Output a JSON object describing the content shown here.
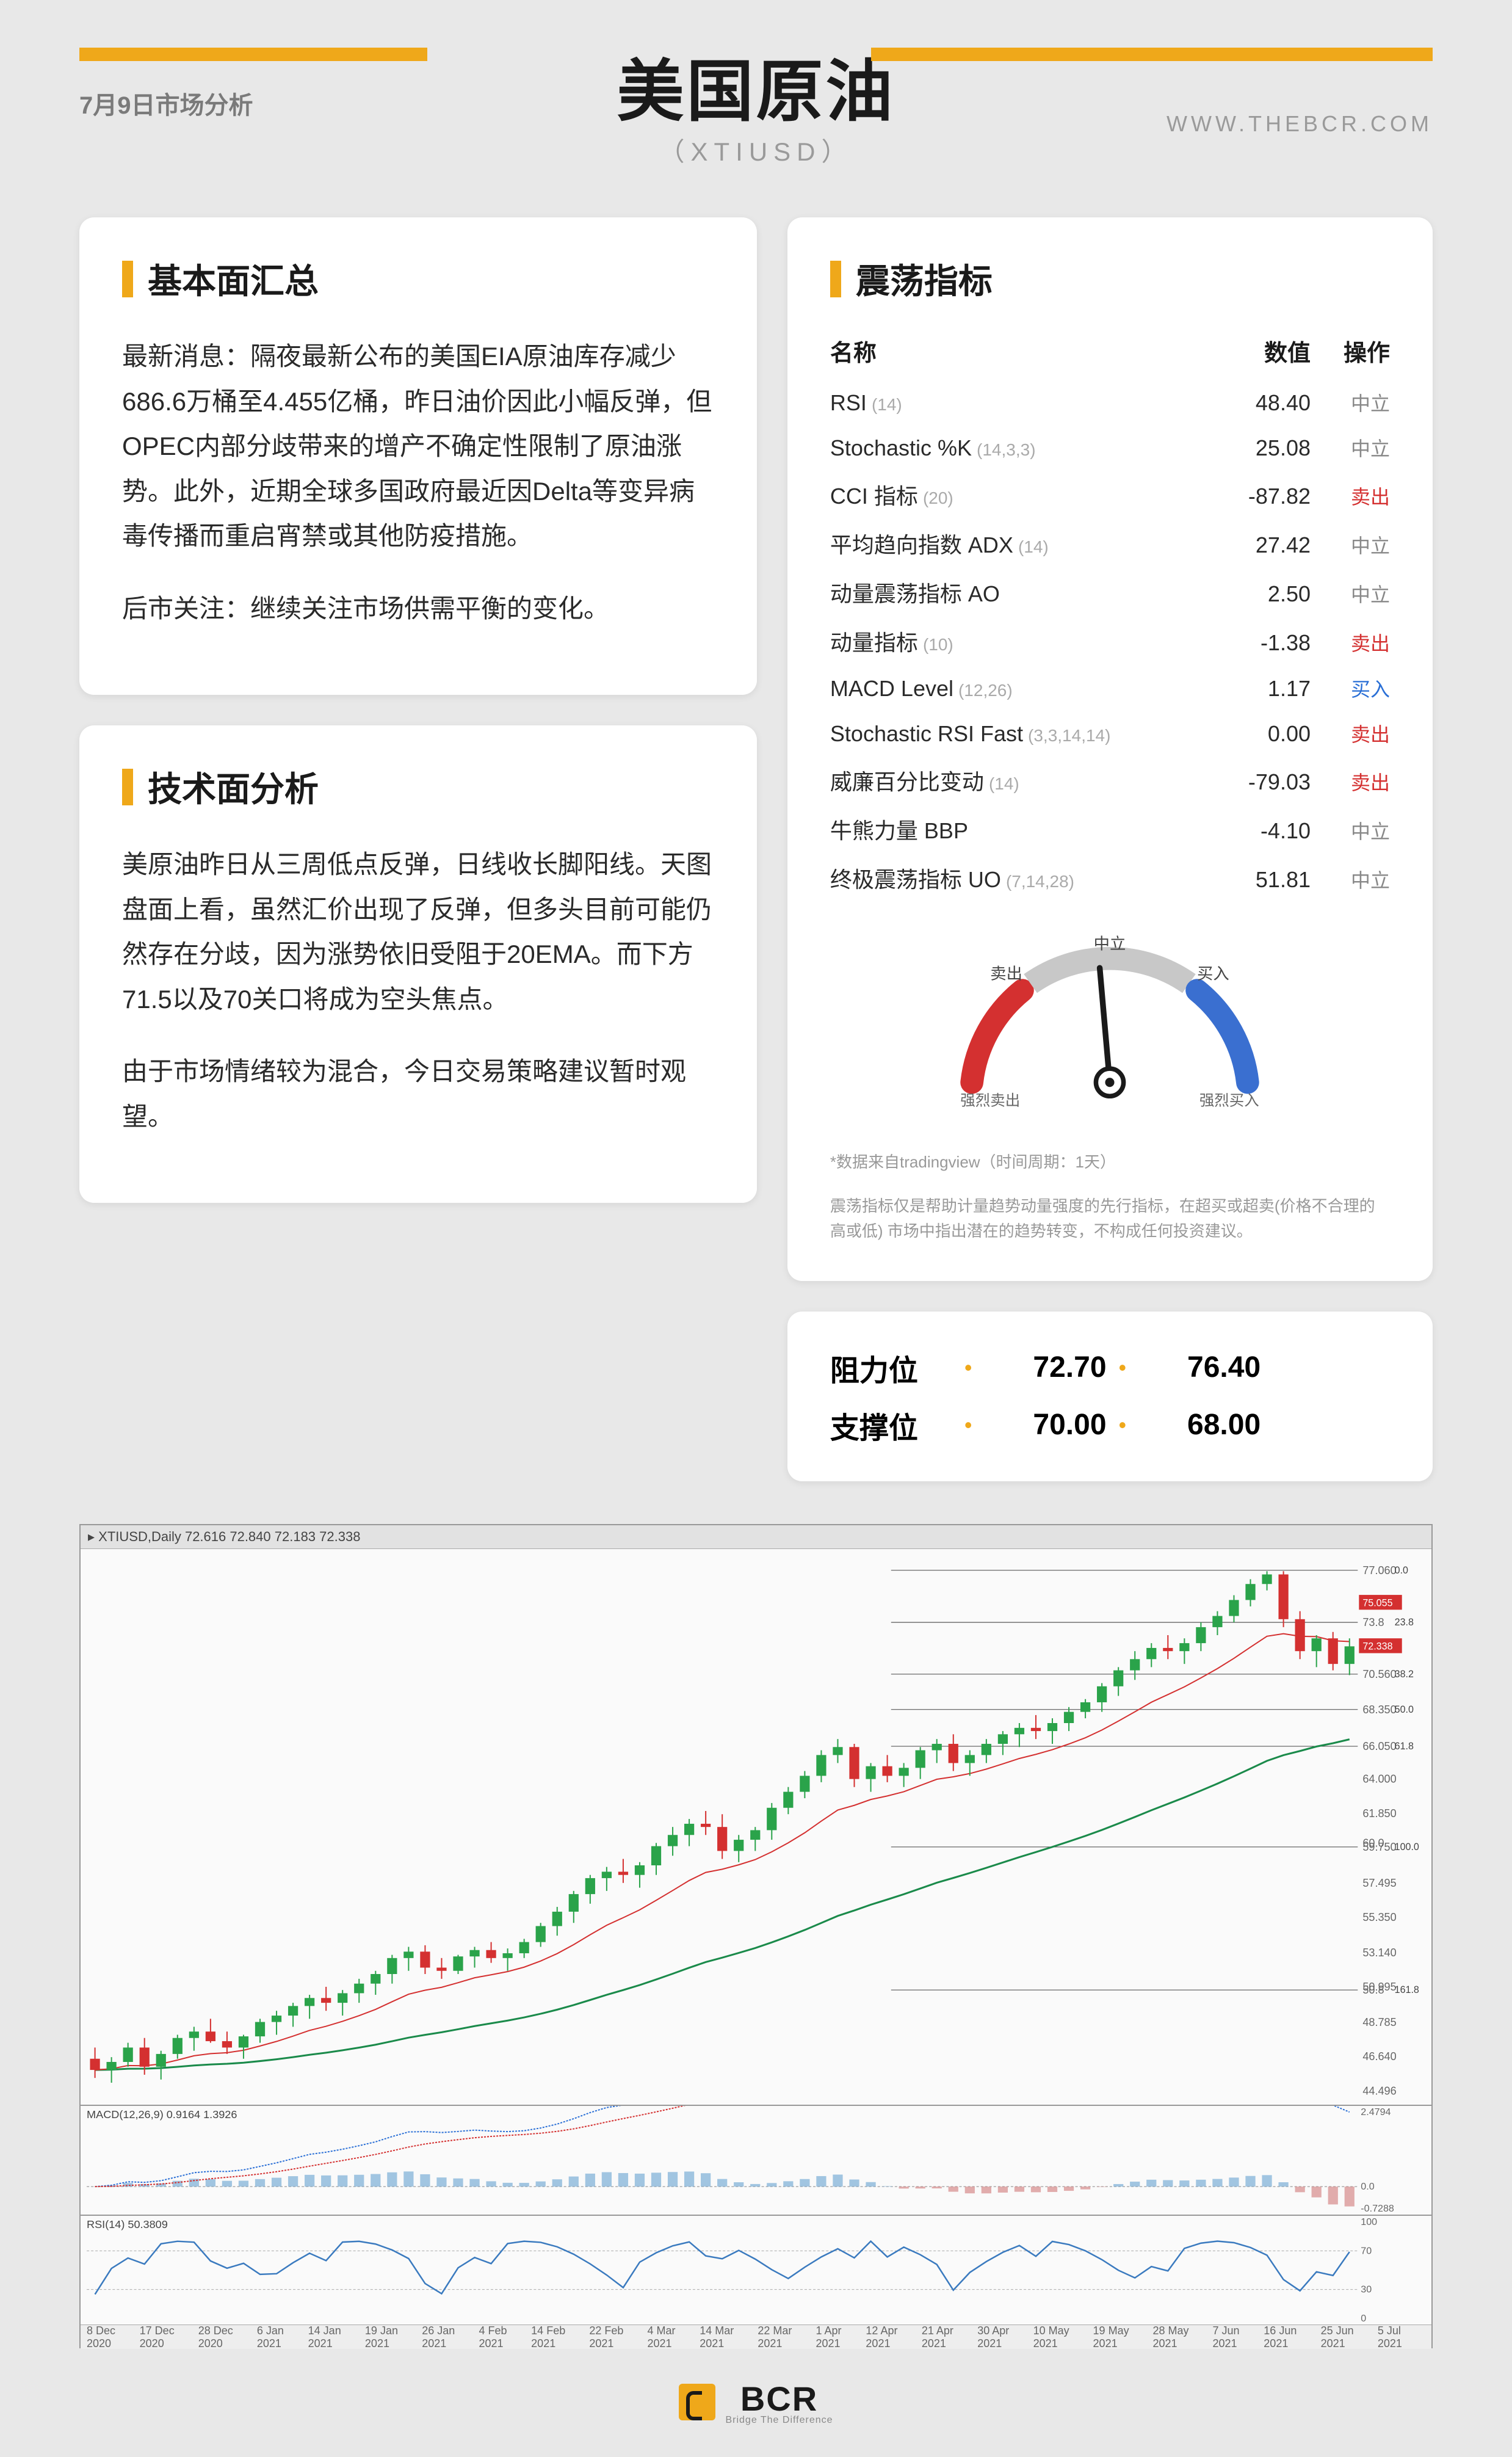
{
  "header": {
    "date": "7月9日市场分析",
    "title": "美国原油",
    "subtitle": "（XTIUSD）",
    "website": "WWW.THEBCR.COM"
  },
  "colors": {
    "accent": "#efa81a",
    "bg": "#e8e8e8",
    "card_bg": "#ffffff",
    "text": "#1a1a1a",
    "muted": "#9a9a9a",
    "sell": "#d43030",
    "buy": "#2a6fd6",
    "neutral": "#888888",
    "candle_up": "#2aa34a",
    "candle_down": "#d43030",
    "ema_fast": "#d43030",
    "ema_slow": "#1a8a4a",
    "macd_line": "#2a6fd6",
    "macd_signal": "#d43030"
  },
  "fundamental": {
    "title": "基本面汇总",
    "p1": "最新消息：隔夜最新公布的美国EIA原油库存减少686.6万桶至4.455亿桶，昨日油价因此小幅反弹，但OPEC内部分歧带来的增产不确定性限制了原油涨势。此外，近期全球多国政府最近因Delta等变异病毒传播而重启宵禁或其他防疫措施。",
    "p2": "后市关注：继续关注市场供需平衡的变化。"
  },
  "technical": {
    "title": "技术面分析",
    "p1": "美原油昨日从三周低点反弹，日线收长脚阳线。天图盘面上看，虽然汇价出现了反弹，但多头目前可能仍然存在分歧，因为涨势依旧受阻于20EMA。而下方71.5以及70关口将成为空头焦点。",
    "p2": "由于市场情绪较为混合，今日交易策略建议暂时观望。"
  },
  "oscillators": {
    "title": "震荡指标",
    "header_name": "名称",
    "header_value": "数值",
    "header_action": "操作",
    "rows": [
      {
        "name": "RSI",
        "param": "(14)",
        "value": "48.40",
        "action": "中立",
        "action_class": "neutral"
      },
      {
        "name": "Stochastic %K",
        "param": "(14,3,3)",
        "value": "25.08",
        "action": "中立",
        "action_class": "neutral"
      },
      {
        "name": "CCI 指标",
        "param": "(20)",
        "value": "-87.82",
        "action": "卖出",
        "action_class": "sell"
      },
      {
        "name": "平均趋向指数 ADX",
        "param": "(14)",
        "value": "27.42",
        "action": "中立",
        "action_class": "neutral"
      },
      {
        "name": "动量震荡指标 AO",
        "param": "",
        "value": "2.50",
        "action": "中立",
        "action_class": "neutral"
      },
      {
        "name": "动量指标",
        "param": "(10)",
        "value": "-1.38",
        "action": "卖出",
        "action_class": "sell"
      },
      {
        "name": "MACD Level",
        "param": "(12,26)",
        "value": "1.17",
        "action": "买入",
        "action_class": "buy"
      },
      {
        "name": "Stochastic RSI Fast",
        "param": "(3,3,14,14)",
        "value": "0.00",
        "action": "卖出",
        "action_class": "sell"
      },
      {
        "name": "威廉百分比变动",
        "param": "(14)",
        "value": "-79.03",
        "action": "卖出",
        "action_class": "sell"
      },
      {
        "name": "牛熊力量 BBP",
        "param": "",
        "value": "-4.10",
        "action": "中立",
        "action_class": "neutral"
      },
      {
        "name": "终极震荡指标 UO",
        "param": "(7,14,28)",
        "value": "51.81",
        "action": "中立",
        "action_class": "neutral"
      }
    ],
    "gauge": {
      "labels": {
        "strong_sell": "强烈卖出",
        "sell": "卖出",
        "neutral": "中立",
        "buy": "买入",
        "strong_buy": "强烈买入"
      },
      "needle_angle": -5,
      "arc_sell_color": "#d43030",
      "arc_neutral_color": "#c8c8c8",
      "arc_buy_color": "#3a6fd0"
    },
    "disclaimer_1": "*数据来自tradingview（时间周期：1天）",
    "disclaimer_2": "震荡指标仅是帮助计量趋势动量强度的先行指标，在超买或超卖(价格不合理的高或低) 市场中指出潜在的趋势转变，不构成任何投资建议。"
  },
  "levels": {
    "resistance_label": "阻力位",
    "resistance": [
      "72.70",
      "76.40"
    ],
    "support_label": "支撑位",
    "support": [
      "70.00",
      "68.00"
    ]
  },
  "chart": {
    "titlebar": "▸ XTIUSD,Daily  72.616 72.840 72.183 72.338",
    "price_range": {
      "min": 44,
      "max": 78
    },
    "yaxis_ticks": [
      "77.060",
      "75.055",
      "73.8",
      "72.338",
      "70.560",
      "68.350",
      "66.050",
      "64.000",
      "61.850",
      "60.0",
      "59.750",
      "57.495",
      "55.350",
      "53.140",
      "50.8",
      "50.995",
      "48.785",
      "46.640",
      "44.496"
    ],
    "fib_levels": [
      {
        "label": "0.0",
        "price": 77.06
      },
      {
        "label": "23.8",
        "price": 73.8
      },
      {
        "label": "38.2",
        "price": 70.56
      },
      {
        "label": "50.0",
        "price": 68.35
      },
      {
        "label": "61.8",
        "price": 66.05
      },
      {
        "label": "100.0",
        "price": 59.75
      },
      {
        "label": "161.8",
        "price": 50.8
      }
    ],
    "candles": [
      {
        "o": 46.5,
        "h": 47.2,
        "l": 45.3,
        "c": 45.8
      },
      {
        "o": 45.8,
        "h": 46.6,
        "l": 45.0,
        "c": 46.3
      },
      {
        "o": 46.3,
        "h": 47.5,
        "l": 46.0,
        "c": 47.2
      },
      {
        "o": 47.2,
        "h": 47.8,
        "l": 45.5,
        "c": 46.0
      },
      {
        "o": 46.0,
        "h": 47.0,
        "l": 45.2,
        "c": 46.8
      },
      {
        "o": 46.8,
        "h": 48.0,
        "l": 46.5,
        "c": 47.8
      },
      {
        "o": 47.8,
        "h": 48.5,
        "l": 47.0,
        "c": 48.2
      },
      {
        "o": 48.2,
        "h": 49.0,
        "l": 47.5,
        "c": 47.6
      },
      {
        "o": 47.6,
        "h": 48.2,
        "l": 46.8,
        "c": 47.2
      },
      {
        "o": 47.2,
        "h": 48.0,
        "l": 46.5,
        "c": 47.9
      },
      {
        "o": 47.9,
        "h": 49.0,
        "l": 47.5,
        "c": 48.8
      },
      {
        "o": 48.8,
        "h": 49.5,
        "l": 48.0,
        "c": 49.2
      },
      {
        "o": 49.2,
        "h": 50.0,
        "l": 48.5,
        "c": 49.8
      },
      {
        "o": 49.8,
        "h": 50.5,
        "l": 49.0,
        "c": 50.3
      },
      {
        "o": 50.3,
        "h": 51.0,
        "l": 49.5,
        "c": 50.0
      },
      {
        "o": 50.0,
        "h": 50.8,
        "l": 49.2,
        "c": 50.6
      },
      {
        "o": 50.6,
        "h": 51.5,
        "l": 50.0,
        "c": 51.2
      },
      {
        "o": 51.2,
        "h": 52.0,
        "l": 50.5,
        "c": 51.8
      },
      {
        "o": 51.8,
        "h": 53.0,
        "l": 51.2,
        "c": 52.8
      },
      {
        "o": 52.8,
        "h": 53.5,
        "l": 52.0,
        "c": 53.2
      },
      {
        "o": 53.2,
        "h": 53.6,
        "l": 51.8,
        "c": 52.2
      },
      {
        "o": 52.2,
        "h": 52.8,
        "l": 51.5,
        "c": 52.0
      },
      {
        "o": 52.0,
        "h": 53.0,
        "l": 51.8,
        "c": 52.9
      },
      {
        "o": 52.9,
        "h": 53.5,
        "l": 52.2,
        "c": 53.3
      },
      {
        "o": 53.3,
        "h": 53.8,
        "l": 52.5,
        "c": 52.8
      },
      {
        "o": 52.8,
        "h": 53.4,
        "l": 52.0,
        "c": 53.1
      },
      {
        "o": 53.1,
        "h": 54.0,
        "l": 52.8,
        "c": 53.8
      },
      {
        "o": 53.8,
        "h": 55.0,
        "l": 53.5,
        "c": 54.8
      },
      {
        "o": 54.8,
        "h": 56.0,
        "l": 54.2,
        "c": 55.7
      },
      {
        "o": 55.7,
        "h": 57.0,
        "l": 55.0,
        "c": 56.8
      },
      {
        "o": 56.8,
        "h": 58.0,
        "l": 56.2,
        "c": 57.8
      },
      {
        "o": 57.8,
        "h": 58.5,
        "l": 57.0,
        "c": 58.2
      },
      {
        "o": 58.2,
        "h": 59.0,
        "l": 57.5,
        "c": 58.0
      },
      {
        "o": 58.0,
        "h": 58.8,
        "l": 57.2,
        "c": 58.6
      },
      {
        "o": 58.6,
        "h": 60.0,
        "l": 58.0,
        "c": 59.8
      },
      {
        "o": 59.8,
        "h": 61.0,
        "l": 59.2,
        "c": 60.5
      },
      {
        "o": 60.5,
        "h": 61.5,
        "l": 59.8,
        "c": 61.2
      },
      {
        "o": 61.2,
        "h": 62.0,
        "l": 60.5,
        "c": 61.0
      },
      {
        "o": 61.0,
        "h": 61.8,
        "l": 59.0,
        "c": 59.5
      },
      {
        "o": 59.5,
        "h": 60.5,
        "l": 58.8,
        "c": 60.2
      },
      {
        "o": 60.2,
        "h": 61.0,
        "l": 59.5,
        "c": 60.8
      },
      {
        "o": 60.8,
        "h": 62.5,
        "l": 60.2,
        "c": 62.2
      },
      {
        "o": 62.2,
        "h": 63.5,
        "l": 61.8,
        "c": 63.2
      },
      {
        "o": 63.2,
        "h": 64.5,
        "l": 62.8,
        "c": 64.2
      },
      {
        "o": 64.2,
        "h": 65.8,
        "l": 63.8,
        "c": 65.5
      },
      {
        "o": 65.5,
        "h": 66.5,
        "l": 65.0,
        "c": 66.0
      },
      {
        "o": 66.0,
        "h": 66.2,
        "l": 63.5,
        "c": 64.0
      },
      {
        "o": 64.0,
        "h": 65.0,
        "l": 63.2,
        "c": 64.8
      },
      {
        "o": 64.8,
        "h": 65.5,
        "l": 63.8,
        "c": 64.2
      },
      {
        "o": 64.2,
        "h": 65.0,
        "l": 63.5,
        "c": 64.7
      },
      {
        "o": 64.7,
        "h": 66.0,
        "l": 64.0,
        "c": 65.8
      },
      {
        "o": 65.8,
        "h": 66.5,
        "l": 65.0,
        "c": 66.2
      },
      {
        "o": 66.2,
        "h": 66.8,
        "l": 64.5,
        "c": 65.0
      },
      {
        "o": 65.0,
        "h": 65.8,
        "l": 64.2,
        "c": 65.5
      },
      {
        "o": 65.5,
        "h": 66.5,
        "l": 65.0,
        "c": 66.2
      },
      {
        "o": 66.2,
        "h": 67.0,
        "l": 65.5,
        "c": 66.8
      },
      {
        "o": 66.8,
        "h": 67.5,
        "l": 66.0,
        "c": 67.2
      },
      {
        "o": 67.2,
        "h": 68.0,
        "l": 66.5,
        "c": 67.0
      },
      {
        "o": 67.0,
        "h": 67.8,
        "l": 66.2,
        "c": 67.5
      },
      {
        "o": 67.5,
        "h": 68.5,
        "l": 67.0,
        "c": 68.2
      },
      {
        "o": 68.2,
        "h": 69.0,
        "l": 67.8,
        "c": 68.8
      },
      {
        "o": 68.8,
        "h": 70.0,
        "l": 68.2,
        "c": 69.8
      },
      {
        "o": 69.8,
        "h": 71.0,
        "l": 69.2,
        "c": 70.8
      },
      {
        "o": 70.8,
        "h": 72.0,
        "l": 70.2,
        "c": 71.5
      },
      {
        "o": 71.5,
        "h": 72.5,
        "l": 71.0,
        "c": 72.2
      },
      {
        "o": 72.2,
        "h": 73.0,
        "l": 71.5,
        "c": 72.0
      },
      {
        "o": 72.0,
        "h": 72.8,
        "l": 71.2,
        "c": 72.5
      },
      {
        "o": 72.5,
        "h": 73.8,
        "l": 72.0,
        "c": 73.5
      },
      {
        "o": 73.5,
        "h": 74.5,
        "l": 73.0,
        "c": 74.2
      },
      {
        "o": 74.2,
        "h": 75.5,
        "l": 73.8,
        "c": 75.2
      },
      {
        "o": 75.2,
        "h": 76.5,
        "l": 74.8,
        "c": 76.2
      },
      {
        "o": 76.2,
        "h": 77.0,
        "l": 75.8,
        "c": 76.8
      },
      {
        "o": 76.8,
        "h": 77.0,
        "l": 73.5,
        "c": 74.0
      },
      {
        "o": 74.0,
        "h": 74.5,
        "l": 71.5,
        "c": 72.0
      },
      {
        "o": 72.0,
        "h": 73.0,
        "l": 71.0,
        "c": 72.8
      },
      {
        "o": 72.8,
        "h": 73.2,
        "l": 70.8,
        "c": 71.2
      },
      {
        "o": 71.2,
        "h": 72.8,
        "l": 70.5,
        "c": 72.3
      }
    ],
    "macd": {
      "label": "MACD(12,26,9) 0.9164 1.3926",
      "range": [
        -0.7288,
        2.4794
      ],
      "yaxis": [
        "2.4794",
        "0.0",
        "-0.7288"
      ]
    },
    "rsi": {
      "label": "RSI(14) 50.3809",
      "range": [
        0,
        100
      ],
      "yaxis": [
        "100",
        "70",
        "30",
        "0"
      ]
    },
    "xaxis_labels": [
      "8 Dec 2020",
      "17 Dec 2020",
      "28 Dec 2020",
      "6 Jan 2021",
      "14 Jan 2021",
      "19 Jan 2021",
      "26 Jan 2021",
      "4 Feb 2021",
      "14 Feb 2021",
      "22 Feb 2021",
      "4 Mar 2021",
      "14 Mar 2021",
      "22 Mar 2021",
      "1 Apr 2021",
      "12 Apr 2021",
      "21 Apr 2021",
      "30 Apr 2021",
      "10 May 2021",
      "19 May 2021",
      "28 May 2021",
      "7 Jun 2021",
      "16 Jun 2021",
      "25 Jun 2021",
      "5 Jul 2021"
    ]
  },
  "footer": {
    "brand": "BCR",
    "tagline": "Bridge The Difference"
  }
}
